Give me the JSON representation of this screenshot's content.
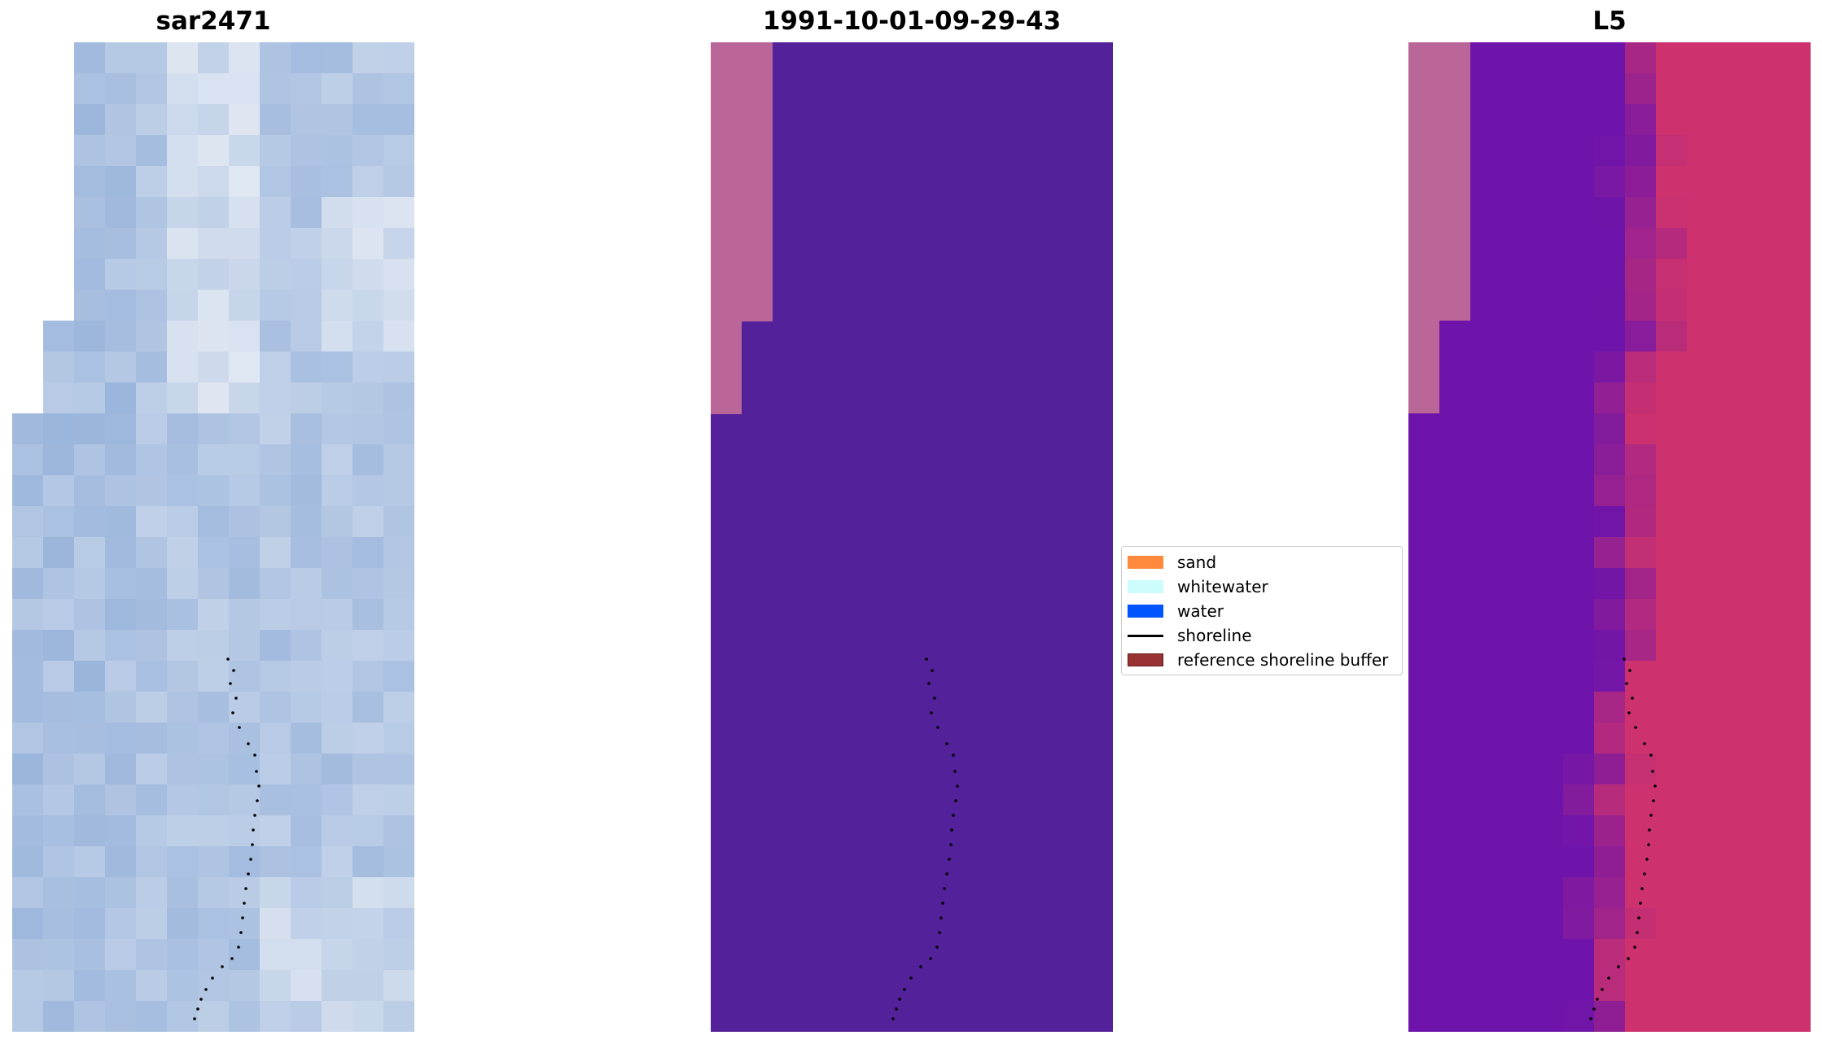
{
  "panels": [
    {
      "title": "sar2471",
      "image": "rgb-satellite-image"
    },
    {
      "title": "1991-10-01-09-29-43",
      "image": "classified-image"
    },
    {
      "title": "L5",
      "image": "mndwi-image"
    }
  ],
  "legend": {
    "items": [
      {
        "label": "sand",
        "color": "#FF8A3D",
        "kind": "patch"
      },
      {
        "label": "whitewater",
        "color": "#CCFCFC",
        "kind": "patch"
      },
      {
        "label": "water",
        "color": "#0055FF",
        "kind": "patch"
      },
      {
        "label": "shoreline",
        "color": "#000000",
        "kind": "line"
      },
      {
        "label": "reference shoreline buffer",
        "color": "#993333",
        "kind": "patch"
      }
    ]
  },
  "colors": {
    "classified_water": "#532199",
    "classified_nodata": "#BB6698",
    "shoreline_points": "#000000"
  }
}
